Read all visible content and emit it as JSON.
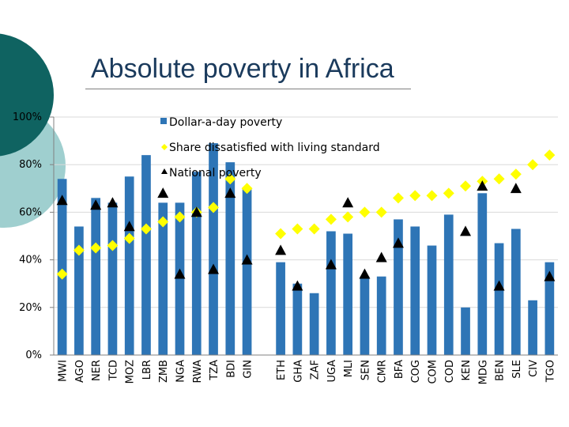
{
  "slide": {
    "title": "Absolute poverty in Africa"
  },
  "colors": {
    "bar": "#2e75b6",
    "diamond": "#ffff00",
    "triangle": "#000000",
    "deco_dark": "#0f6361",
    "deco_light": "#9fcfcf"
  },
  "chart_data": {
    "type": "bar",
    "title": "Absolute poverty in Africa",
    "ylim": [
      0,
      100
    ],
    "yticks": [
      "0%",
      "20%",
      "40%",
      "60%",
      "80%",
      "100%"
    ],
    "ytick_values": [
      0,
      20,
      40,
      60,
      80,
      100
    ],
    "group_a": [
      "MWI",
      "AGO",
      "NER",
      "TCD",
      "MOZ",
      "LBR",
      "ZMB",
      "NGA",
      "RWA",
      "TZA",
      "BDI",
      "GIN"
    ],
    "group_b": [
      "ETH",
      "GHA",
      "ZAF",
      "UGA",
      "MLI",
      "SEN",
      "CMR",
      "BFA",
      "COG",
      "COM",
      "COD",
      "KEN",
      "MDG",
      "BEN",
      "SLE",
      "CIV",
      "TGO"
    ],
    "series": [
      {
        "name": "Dollar-a-day poverty",
        "marker": "bar",
        "values": [
          74,
          54,
          66,
          64,
          75,
          84,
          64,
          64,
          77,
          89,
          81,
          70,
          39,
          30,
          26,
          52,
          51,
          33,
          33,
          57,
          54,
          46,
          59,
          20,
          68,
          47,
          53,
          23,
          39
        ]
      },
      {
        "name": "Share dissatisfied with living standard",
        "marker": "diamond",
        "values": [
          34,
          44,
          45,
          46,
          49,
          53,
          56,
          58,
          60,
          62,
          74,
          70,
          51,
          53,
          53,
          57,
          58,
          60,
          60,
          66,
          67,
          67,
          68,
          71,
          73,
          74,
          76,
          80,
          84
        ]
      },
      {
        "name": "National poverty",
        "marker": "triangle",
        "values": [
          65,
          null,
          63,
          64,
          54,
          null,
          68,
          34,
          60,
          36,
          68,
          40,
          44,
          29,
          null,
          38,
          64,
          34,
          41,
          47,
          null,
          null,
          null,
          52,
          71,
          29,
          70,
          null,
          33
        ]
      }
    ]
  }
}
